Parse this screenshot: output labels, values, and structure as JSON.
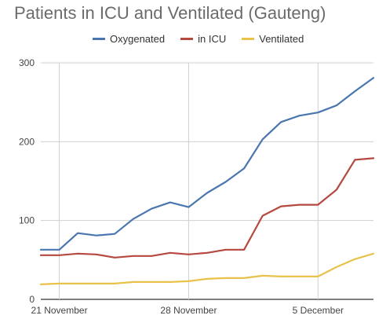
{
  "chart_data": {
    "type": "line",
    "title": "Patients in ICU and Ventilated (Gauteng)",
    "x": [
      "20 Nov",
      "21 Nov",
      "22 Nov",
      "23 Nov",
      "24 Nov",
      "25 Nov",
      "26 Nov",
      "27 Nov",
      "28 Nov",
      "29 Nov",
      "30 Nov",
      "1 Dec",
      "2 Dec",
      "3 Dec",
      "4 Dec",
      "5 Dec",
      "6 Dec",
      "7 Dec",
      "8 Dec"
    ],
    "x_tick_labels": [
      "21 November",
      "28 November",
      "5 December"
    ],
    "ylim": [
      0,
      300
    ],
    "yticks": [
      0,
      100,
      200,
      300
    ],
    "grid": true,
    "legend_position": "top",
    "series": [
      {
        "name": "Oxygenated",
        "color": "#4a76b0",
        "values": [
          63,
          63,
          84,
          81,
          83,
          102,
          115,
          123,
          117,
          135,
          149,
          166,
          203,
          225,
          233,
          237,
          246,
          264,
          281
        ]
      },
      {
        "name": "in ICU",
        "color": "#b5483f",
        "values": [
          56,
          56,
          58,
          57,
          53,
          55,
          55,
          59,
          57,
          59,
          63,
          63,
          106,
          118,
          120,
          120,
          139,
          177,
          179
        ]
      },
      {
        "name": "Ventilated",
        "color": "#e8c24a",
        "values": [
          19,
          20,
          20,
          20,
          20,
          22,
          22,
          22,
          23,
          26,
          27,
          27,
          30,
          29,
          29,
          29,
          41,
          51,
          58
        ]
      }
    ]
  }
}
